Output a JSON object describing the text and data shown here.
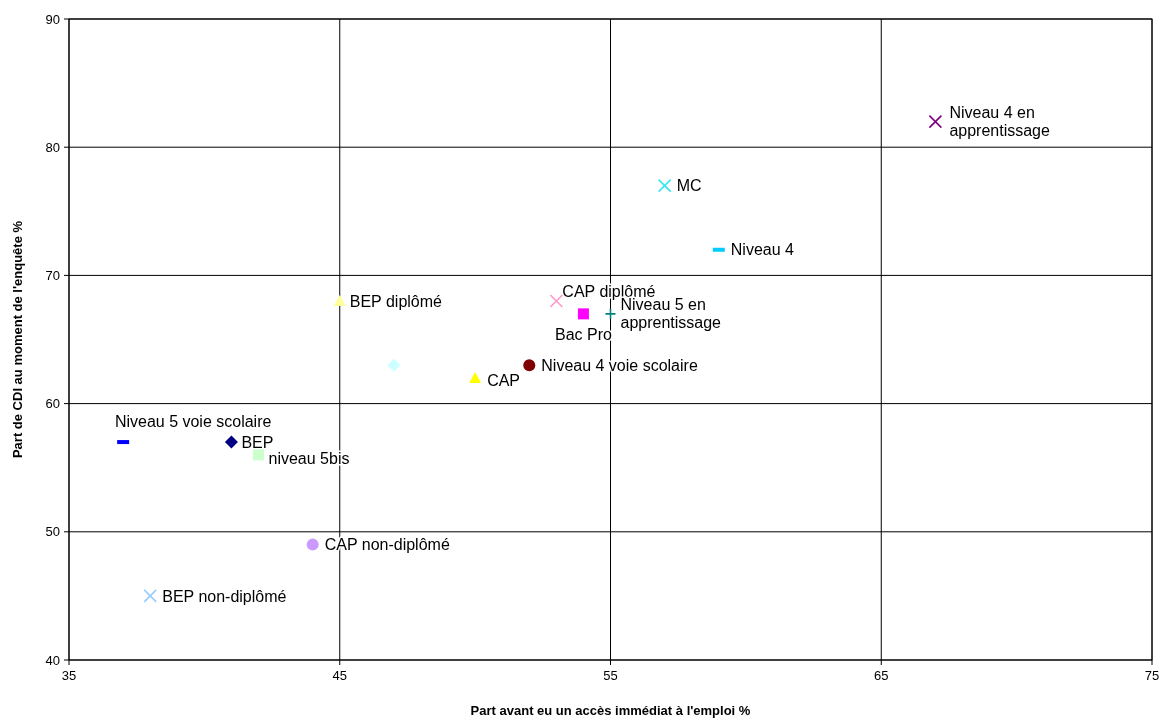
{
  "chart_data": {
    "type": "scatter",
    "xlabel": "Part avant eu un accès immédiat à l'emploi %",
    "ylabel": "Part de CDI au moment de l'enquête %",
    "xlim": [
      35,
      75
    ],
    "xticks": [
      35,
      45,
      55,
      65,
      75
    ],
    "ylim": [
      40,
      90
    ],
    "yticks": [
      40,
      50,
      60,
      70,
      80,
      90
    ],
    "grid": true,
    "series": [
      {
        "name": "Niveau 4 en apprentissage",
        "color": "#800080",
        "marker": "cross",
        "x": [
          67
        ],
        "values": [
          82
        ]
      },
      {
        "name": "MC",
        "color": "#33e6f0",
        "marker": "cross",
        "x": [
          57
        ],
        "values": [
          77
        ]
      },
      {
        "name": "Niveau 4",
        "color": "#00ccff",
        "x": [
          59
        ],
        "values": [
          72
        ]
      },
      {
        "name": "BEP diplômé",
        "color": "#ffff99",
        "marker": "triangle",
        "x": [
          45
        ],
        "values": [
          68
        ]
      },
      {
        "name": "CAP diplômé",
        "color": "#ff99cc",
        "marker": "cross",
        "x": [
          53
        ],
        "values": [
          68
        ]
      },
      {
        "name": "Bac Pro",
        "color": "#ff00ff",
        "marker": "square",
        "x": [
          54
        ],
        "values": [
          67
        ]
      },
      {
        "name": "Niveau 5 en apprentissage",
        "color": "#008080",
        "marker": "plus",
        "x": [
          55
        ],
        "values": [
          67
        ]
      },
      {
        "color": "#ccffff",
        "marker": "diamond",
        "x": [
          47
        ],
        "values": [
          63
        ]
      },
      {
        "name": "CAP",
        "color": "#ffff00",
        "marker": "triangle",
        "x": [
          50
        ],
        "values": [
          62
        ]
      },
      {
        "name": "Niveau 4 voie scolaire",
        "color": "#800000",
        "marker": "circle",
        "x": [
          52
        ],
        "values": [
          63
        ]
      },
      {
        "name": "Niveau 5 voie scolaire",
        "color": "#0000ff",
        "x": [
          37
        ],
        "values": [
          57
        ]
      },
      {
        "name": "BEP",
        "color": "#000080",
        "marker": "diamond",
        "x": [
          41
        ],
        "values": [
          57
        ]
      },
      {
        "name": "niveau 5bis",
        "color": "#ccffcc",
        "marker": "square",
        "x": [
          42
        ],
        "values": [
          56
        ]
      },
      {
        "name": "CAP non-diplômé",
        "color": "#cc99ff",
        "marker": "circle",
        "x": [
          44
        ],
        "values": [
          49
        ]
      },
      {
        "name": "BEP non-diplômé",
        "color": "#99ccff",
        "marker": "cross",
        "x": [
          38
        ],
        "values": [
          45
        ]
      }
    ]
  }
}
